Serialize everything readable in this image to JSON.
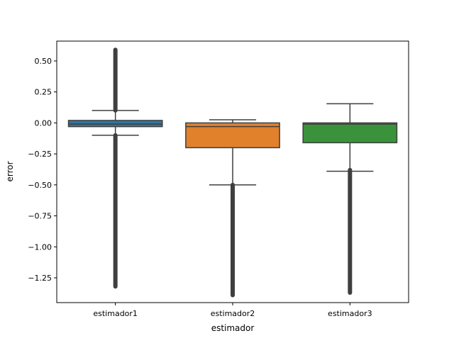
{
  "chart_data": {
    "type": "boxplot",
    "title": "",
    "xlabel": "estimador",
    "ylabel": "error",
    "ylim": [
      -1.45,
      0.66
    ],
    "yticks": [
      0.5,
      0.25,
      0.0,
      -0.25,
      -0.5,
      -0.75,
      -1.0,
      -1.25
    ],
    "ytick_labels": [
      "0.50",
      "0.25",
      "0.00",
      "−0.25",
      "−0.50",
      "−0.75",
      "−1.00",
      "−1.25"
    ],
    "grid": false,
    "categories": [
      "estimador1",
      "estimador2",
      "estimador3"
    ],
    "boxes": [
      {
        "name": "estimador1",
        "color": "#3274a1",
        "whisker_low": -0.1,
        "q1": -0.03,
        "median": -0.01,
        "q3": 0.02,
        "whisker_high": 0.1,
        "outliers_low": [
          -0.1,
          -1.32
        ],
        "outliers_high": [
          0.1,
          0.59
        ]
      },
      {
        "name": "estimador2",
        "color": "#e1812c",
        "whisker_low": -0.5,
        "q1": -0.2,
        "median": -0.03,
        "q3": 0.0,
        "whisker_high": 0.025,
        "outliers_low": [
          -0.5,
          -1.39
        ],
        "outliers_high": null
      },
      {
        "name": "estimador3",
        "color": "#3a923a",
        "whisker_low": -0.39,
        "q1": -0.16,
        "median": -0.01,
        "q3": 0.0,
        "whisker_high": 0.155,
        "outliers_low": [
          -0.38,
          -1.37
        ],
        "outliers_high": null
      }
    ]
  }
}
